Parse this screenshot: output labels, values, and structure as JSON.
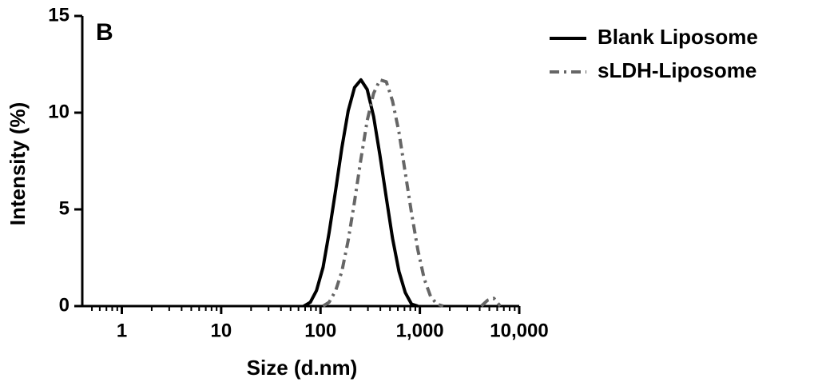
{
  "chart_data": {
    "type": "line",
    "panel_label": "B",
    "xlabel": "Size (d.nm)",
    "ylabel": "Intensity (%)",
    "xscale": "log",
    "xlim": [
      0.4,
      10000
    ],
    "ylim": [
      0,
      15
    ],
    "xticks": [
      1,
      10,
      100,
      {
        "value": 1000,
        "label": "1,000"
      },
      {
        "value": 10000,
        "label": "10,000"
      }
    ],
    "yticks": [
      0,
      5,
      10,
      15
    ],
    "legend": "upper right",
    "series": [
      {
        "name": "Blank Liposome",
        "color": "#000000",
        "dash": "solid",
        "x": [
          68,
          79,
          91,
          106,
          122,
          142,
          164,
          190,
          220,
          255,
          295,
          342,
          396,
          459,
          531,
          615,
          712,
          825,
          955
        ],
        "values": [
          0,
          0.2,
          0.8,
          2.0,
          3.8,
          6.0,
          8.2,
          10.1,
          11.3,
          11.7,
          11.2,
          9.8,
          7.8,
          5.6,
          3.5,
          1.8,
          0.7,
          0.1,
          0
        ]
      },
      {
        "name": "sLDH-Liposome",
        "color": "#666666",
        "dash": "dashdot",
        "x": [
          106,
          122,
          142,
          164,
          190,
          220,
          255,
          295,
          342,
          396,
          459,
          531,
          615,
          712,
          825,
          955,
          1106,
          1281,
          1484,
          1718,
          3000,
          4150,
          4800,
          5560,
          6440
        ],
        "values": [
          0,
          0.2,
          0.8,
          1.8,
          3.4,
          5.4,
          7.6,
          9.6,
          11.0,
          11.7,
          11.6,
          10.6,
          9.0,
          6.9,
          4.8,
          2.9,
          1.4,
          0.5,
          0.1,
          0,
          null,
          0,
          0.3,
          0.4,
          0
        ]
      }
    ]
  }
}
